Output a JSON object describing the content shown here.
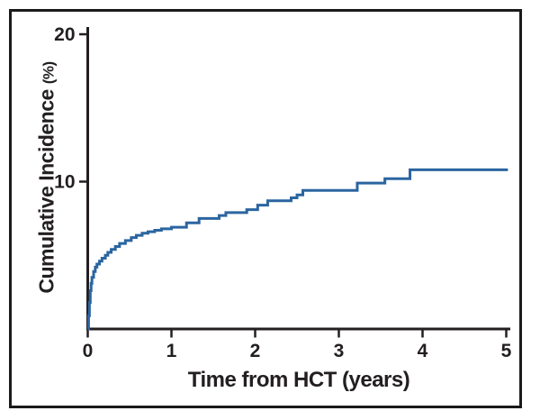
{
  "figure": {
    "border_color": "#1a1a1a",
    "background_color": "#ffffff"
  },
  "chart_data": {
    "type": "line",
    "subtype": "step-function cumulative incidence curve",
    "title": "",
    "xlabel": "Time from HCT (years)",
    "ylabel": "Cumulative Incidence",
    "ylabel_unit": "(%)",
    "xlim": [
      0,
      5
    ],
    "ylim": [
      0,
      20
    ],
    "x_ticks": [
      0,
      1,
      2,
      3,
      4,
      5
    ],
    "y_ticks": [
      10,
      20
    ],
    "grid": false,
    "legend_position": "none",
    "line_color": "#2b65a0",
    "axis_color": "#231f20",
    "series": [
      {
        "name": "Cumulative incidence",
        "steps_t_pct": [
          [
            0.0,
            0.0
          ],
          [
            0.01,
            0.9
          ],
          [
            0.02,
            1.8
          ],
          [
            0.03,
            2.6
          ],
          [
            0.04,
            3.1
          ],
          [
            0.05,
            3.5
          ],
          [
            0.07,
            3.9
          ],
          [
            0.09,
            4.2
          ],
          [
            0.11,
            4.4
          ],
          [
            0.14,
            4.6
          ],
          [
            0.17,
            4.8
          ],
          [
            0.21,
            5.0
          ],
          [
            0.24,
            5.2
          ],
          [
            0.28,
            5.4
          ],
          [
            0.33,
            5.6
          ],
          [
            0.38,
            5.8
          ],
          [
            0.45,
            6.0
          ],
          [
            0.52,
            6.2
          ],
          [
            0.58,
            6.35
          ],
          [
            0.65,
            6.5
          ],
          [
            0.72,
            6.6
          ],
          [
            0.8,
            6.7
          ],
          [
            0.88,
            6.8
          ],
          [
            1.0,
            6.9
          ],
          [
            1.18,
            7.2
          ],
          [
            1.33,
            7.5
          ],
          [
            1.57,
            7.7
          ],
          [
            1.65,
            7.9
          ],
          [
            1.9,
            8.1
          ],
          [
            2.03,
            8.4
          ],
          [
            2.15,
            8.7
          ],
          [
            2.43,
            8.9
          ],
          [
            2.5,
            9.1
          ],
          [
            2.57,
            9.4
          ],
          [
            3.22,
            9.9
          ],
          [
            3.55,
            10.2
          ],
          [
            3.85,
            10.8
          ],
          [
            5.02,
            10.8
          ]
        ],
        "final_value_pct": 10.8
      }
    ]
  }
}
